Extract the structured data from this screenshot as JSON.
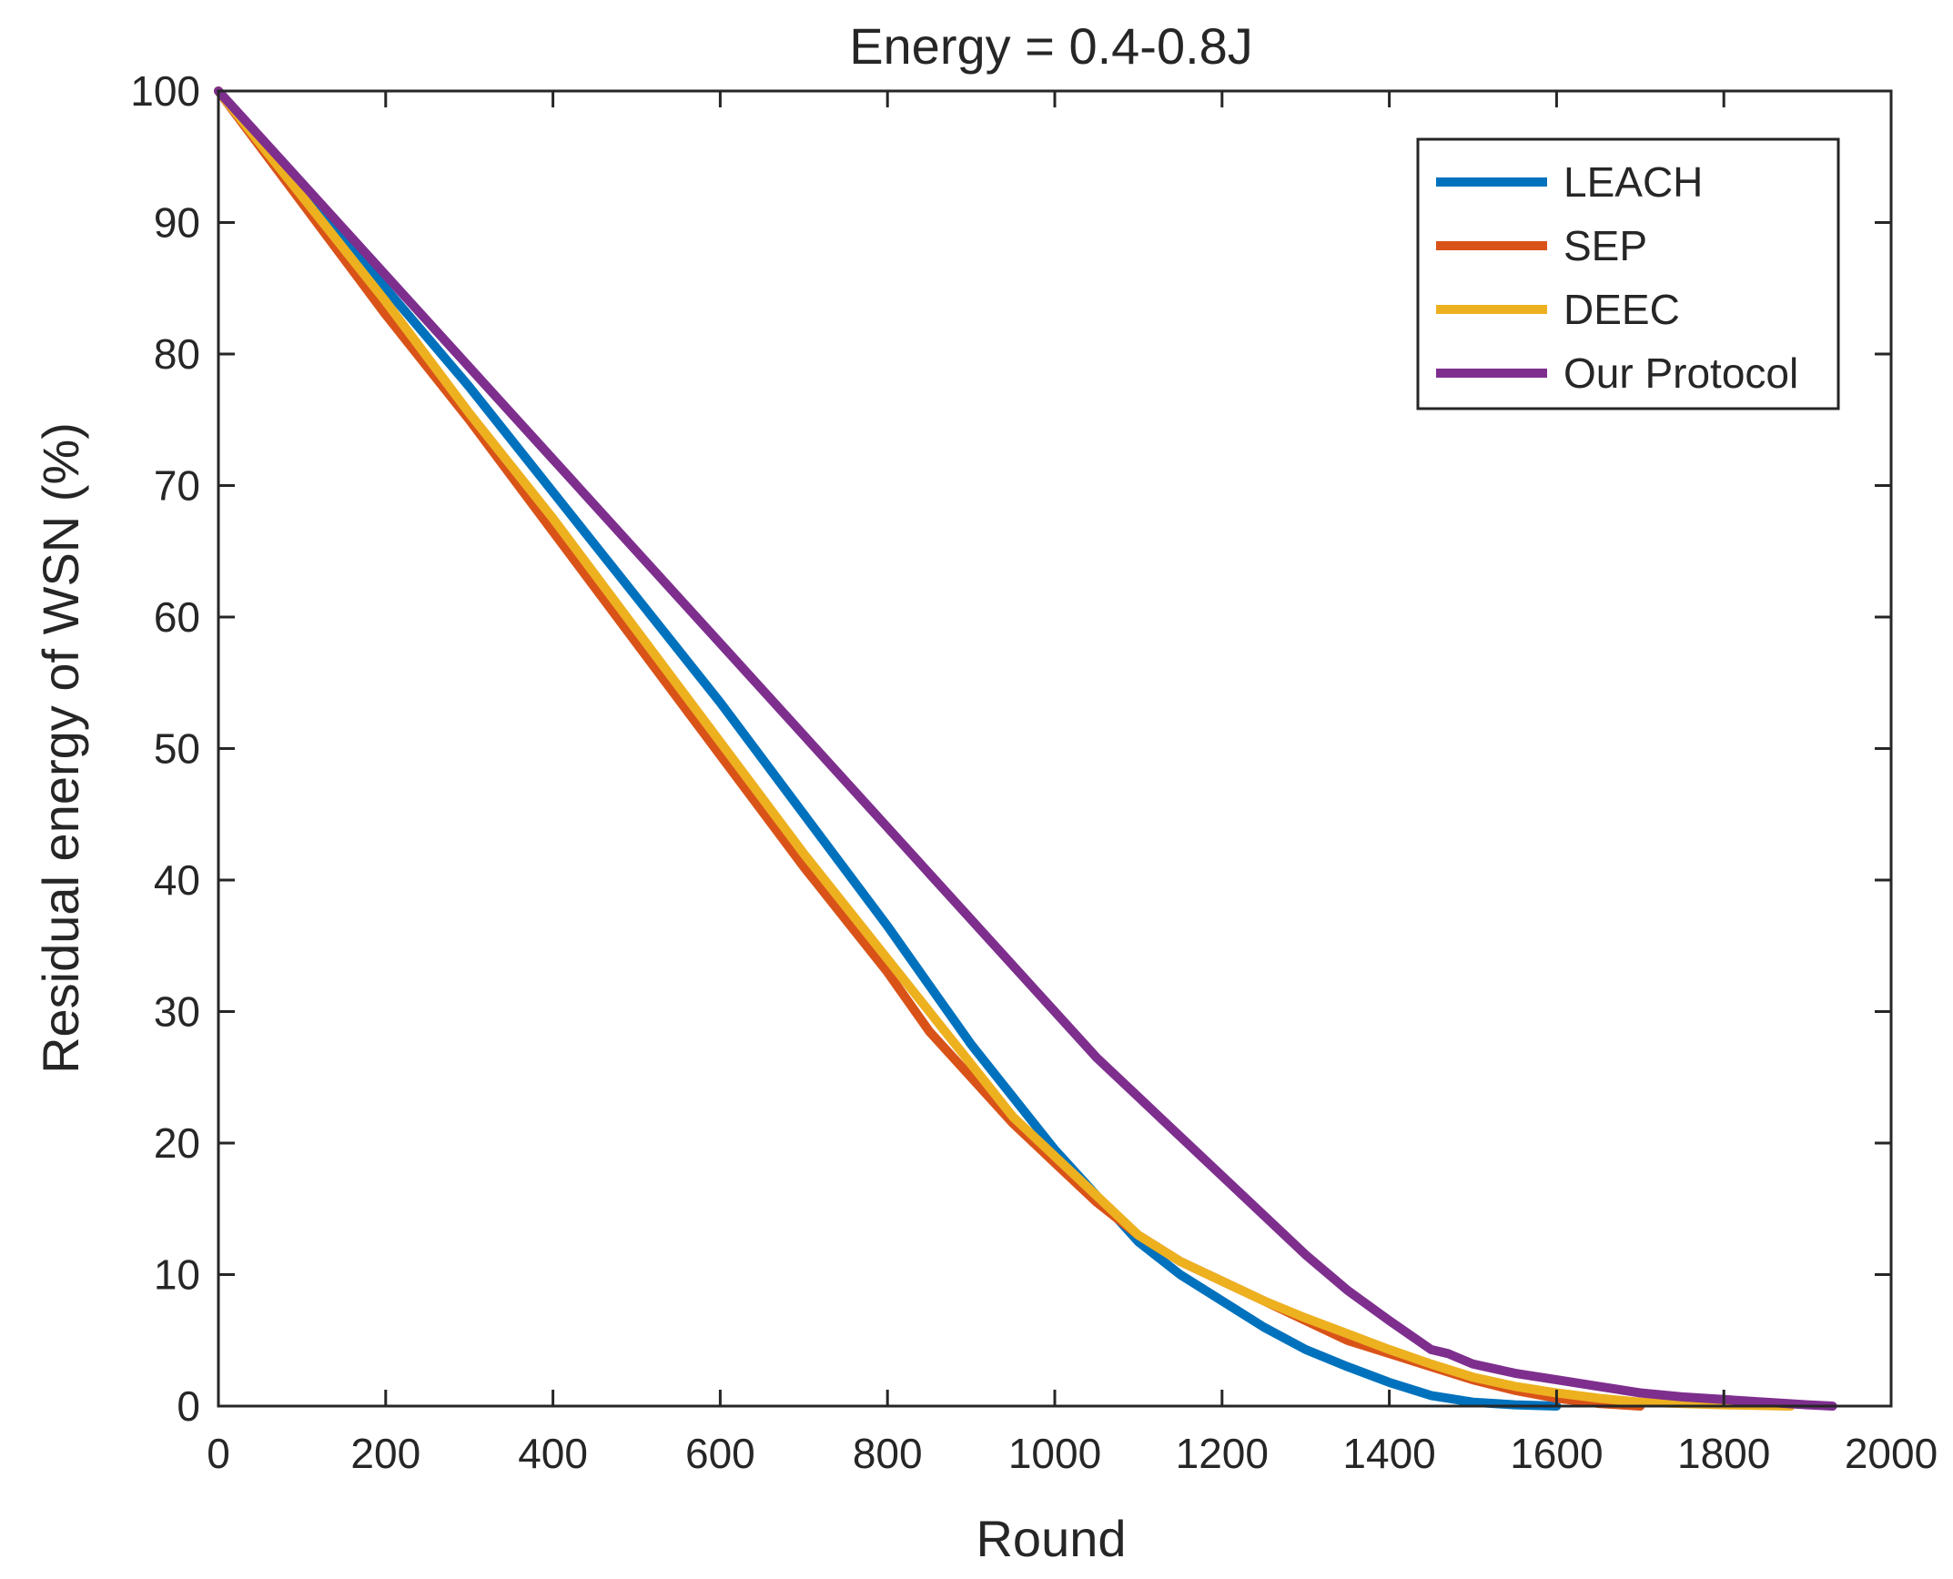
{
  "chart_data": {
    "type": "line",
    "title": "Energy = 0.4-0.8J",
    "xlabel": "Round",
    "ylabel": "Residual energy of WSN (%)",
    "xlim": [
      0,
      2000
    ],
    "ylim": [
      0,
      100
    ],
    "xticks": [
      0,
      200,
      400,
      600,
      800,
      1000,
      1200,
      1400,
      1600,
      1800,
      2000
    ],
    "yticks": [
      0,
      10,
      20,
      30,
      40,
      50,
      60,
      70,
      80,
      90,
      100
    ],
    "xtick_labels": [
      "0",
      "200",
      "400",
      "600",
      "800",
      "1000",
      "1200",
      "1400",
      "1600",
      "1800",
      "2000"
    ],
    "ytick_labels": [
      "0",
      "10",
      "20",
      "30",
      "40",
      "50",
      "60",
      "70",
      "80",
      "90",
      "100"
    ],
    "grid": false,
    "legend_position": "top-right",
    "series": [
      {
        "name": "LEACH",
        "color": "#0072BD",
        "x": [
          0,
          100,
          200,
          300,
          400,
          500,
          600,
          700,
          800,
          850,
          900,
          950,
          1000,
          1050,
          1100,
          1150,
          1200,
          1250,
          1300,
          1350,
          1400,
          1450,
          1500,
          1550,
          1600
        ],
        "y": [
          100,
          92.5,
          85,
          77.5,
          69.5,
          61.5,
          53.5,
          45,
          36.5,
          32,
          27.5,
          23.5,
          19.5,
          16,
          12.5,
          10,
          8,
          6,
          4.3,
          3,
          1.8,
          0.8,
          0.3,
          0.1,
          0
        ]
      },
      {
        "name": "SEP",
        "color": "#D95319",
        "x": [
          0,
          100,
          200,
          300,
          400,
          500,
          600,
          700,
          800,
          850,
          900,
          950,
          1000,
          1050,
          1100,
          1150,
          1200,
          1250,
          1300,
          1350,
          1400,
          1450,
          1500,
          1550,
          1600,
          1650,
          1700
        ],
        "y": [
          100,
          91.5,
          83,
          75,
          66.5,
          58,
          49.5,
          41,
          33,
          28.5,
          25,
          21.5,
          18.5,
          15.5,
          13,
          11,
          9.5,
          8,
          6.5,
          5,
          4,
          3,
          2,
          1.2,
          0.6,
          0.2,
          0
        ]
      },
      {
        "name": "DEEC",
        "color": "#EDB120",
        "x": [
          0,
          100,
          200,
          300,
          400,
          500,
          600,
          700,
          800,
          850,
          900,
          950,
          1000,
          1050,
          1100,
          1150,
          1200,
          1250,
          1300,
          1350,
          1400,
          1450,
          1500,
          1550,
          1600,
          1650,
          1700,
          1800,
          1880
        ],
        "y": [
          100,
          92,
          84,
          75.5,
          67.5,
          59,
          50.5,
          42,
          34,
          30,
          26,
          22,
          19,
          16,
          13,
          11,
          9.5,
          8,
          6.7,
          5.5,
          4.3,
          3.2,
          2.2,
          1.5,
          1,
          0.6,
          0.3,
          0.1,
          0
        ]
      },
      {
        "name": "Our Protocol",
        "color": "#7E2F8E",
        "x": [
          0,
          100,
          200,
          300,
          400,
          500,
          600,
          700,
          800,
          900,
          1000,
          1050,
          1100,
          1150,
          1200,
          1250,
          1300,
          1350,
          1400,
          1450,
          1470,
          1500,
          1550,
          1600,
          1650,
          1700,
          1750,
          1800,
          1850,
          1900,
          1930
        ],
        "y": [
          100,
          93,
          86,
          79,
          72,
          65,
          58,
          51,
          44,
          37,
          30,
          26.5,
          23.5,
          20.5,
          17.5,
          14.5,
          11.5,
          8.8,
          6.5,
          4.3,
          4,
          3.2,
          2.5,
          2,
          1.5,
          1,
          0.7,
          0.5,
          0.3,
          0.1,
          0
        ]
      }
    ]
  }
}
